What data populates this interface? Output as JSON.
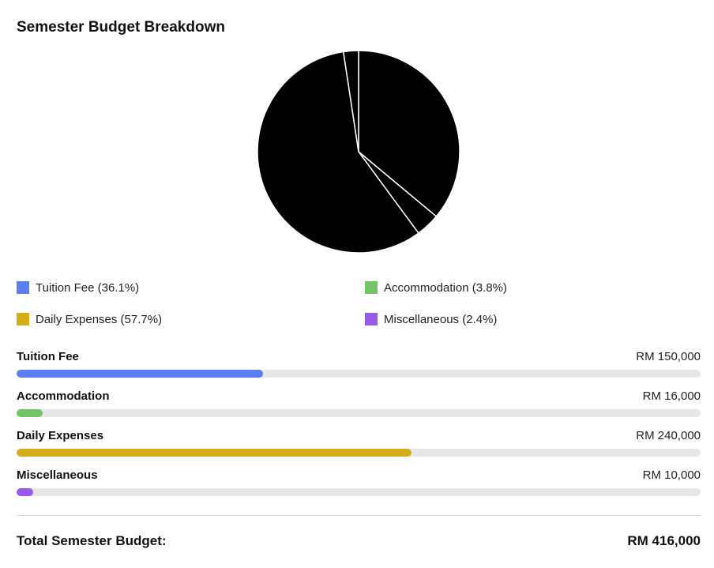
{
  "chart_data": {
    "type": "pie",
    "title": "Semester Budget Breakdown",
    "currency": "RM",
    "categories": [
      "Tuition Fee",
      "Accommodation",
      "Daily Expenses",
      "Miscellaneous"
    ],
    "values": [
      150000,
      16000,
      240000,
      10000
    ],
    "value_labels": [
      "RM 150,000",
      "RM 16,000",
      "RM 240,000",
      "RM 10,000"
    ],
    "percentages": [
      36.1,
      3.8,
      57.7,
      2.4
    ],
    "legend_labels": [
      "Tuition Fee (36.1%)",
      "Accommodation (3.8%)",
      "Daily Expenses (57.7%)",
      "Miscellaneous (2.4%)"
    ],
    "colors": [
      "#5b7ff0",
      "#72c466",
      "#d4ae1a",
      "#9b59e8"
    ],
    "slice_fill": "#000000",
    "legend_placement": "below",
    "total": 416000
  },
  "summary": {
    "total_label": "Total Semester Budget:",
    "total_value": "RM 416,000"
  }
}
